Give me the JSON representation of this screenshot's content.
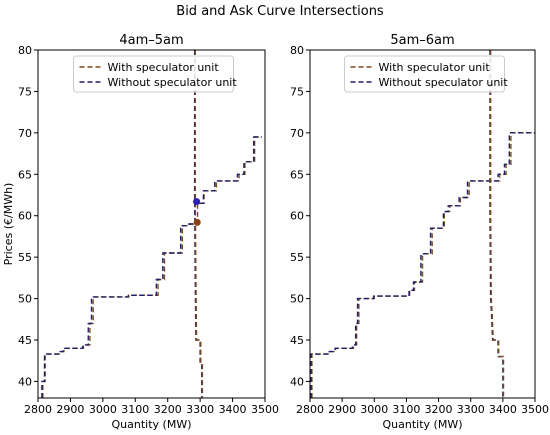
{
  "figure": {
    "suptitle": "Bid and Ask Curve Intersections"
  },
  "legend": {
    "entries": [
      {
        "label": "With speculator unit",
        "color": "#7a4a1e"
      },
      {
        "label": "Without speculator unit",
        "color": "#1f1f6e"
      }
    ]
  },
  "chart_data": [
    {
      "type": "line",
      "title": "4am–5am",
      "xlabel": "Quantity (MW)",
      "ylabel": "Prices (€/MWh)",
      "xlim": [
        2800,
        3500
      ],
      "ylim": [
        38,
        80
      ],
      "xticks": [
        2800,
        2900,
        3000,
        3100,
        3200,
        3300,
        3400,
        3500
      ],
      "yticks": [
        40,
        45,
        50,
        55,
        60,
        65,
        70,
        75,
        80
      ],
      "legend_position": "top-center",
      "grid": false,
      "series": [
        {
          "name": "With speculator unit",
          "color": "#7a4a1e",
          "points": [
            [
              2815,
              38
            ],
            [
              2815,
              40
            ],
            [
              2822,
              40
            ],
            [
              2822,
              43.3
            ],
            [
              2865,
              43.3
            ],
            [
              2865,
              43.6
            ],
            [
              2880,
              43.6
            ],
            [
              2880,
              44
            ],
            [
              2940,
              44
            ],
            [
              2940,
              44.4
            ],
            [
              2960,
              44.4
            ],
            [
              2960,
              47
            ],
            [
              2970,
              47
            ],
            [
              2970,
              50.2
            ],
            [
              3080,
              50.2
            ],
            [
              3080,
              50.4
            ],
            [
              3170,
              50.4
            ],
            [
              3170,
              52.3
            ],
            [
              3190,
              52.3
            ],
            [
              3190,
              55.5
            ],
            [
              3245,
              55.5
            ],
            [
              3245,
              58.8
            ],
            [
              3268,
              58.8
            ],
            [
              3268,
              59
            ],
            [
              3292,
              59
            ],
            [
              3292,
              61.5
            ],
            [
              3312,
              61.5
            ],
            [
              3312,
              63
            ],
            [
              3350,
              63
            ],
            [
              3350,
              64.2
            ],
            [
              3420,
              64.2
            ],
            [
              3420,
              65
            ],
            [
              3438,
              65
            ],
            [
              3438,
              66.5
            ],
            [
              3468,
              66.5
            ],
            [
              3468,
              69.5
            ],
            [
              3490,
              69.5
            ]
          ]
        },
        {
          "name": "Without speculator unit",
          "color": "#1f1f6e",
          "points": [
            [
              2812,
              38
            ],
            [
              2812,
              40
            ],
            [
              2820,
              40
            ],
            [
              2820,
              43.3
            ],
            [
              2862,
              43.3
            ],
            [
              2862,
              43.6
            ],
            [
              2878,
              43.6
            ],
            [
              2878,
              44
            ],
            [
              2938,
              44
            ],
            [
              2938,
              44.4
            ],
            [
              2955,
              44.4
            ],
            [
              2955,
              47
            ],
            [
              2965,
              47
            ],
            [
              2965,
              50.2
            ],
            [
              3078,
              50.2
            ],
            [
              3078,
              50.4
            ],
            [
              3165,
              50.4
            ],
            [
              3165,
              52.3
            ],
            [
              3185,
              52.3
            ],
            [
              3185,
              55.5
            ],
            [
              3240,
              55.5
            ],
            [
              3240,
              58.8
            ],
            [
              3265,
              58.8
            ],
            [
              3265,
              59
            ],
            [
              3285,
              59
            ],
            [
              3285,
              61.5
            ],
            [
              3310,
              61.5
            ],
            [
              3310,
              63
            ],
            [
              3345,
              63
            ],
            [
              3345,
              64.2
            ],
            [
              3415,
              64.2
            ],
            [
              3415,
              65
            ],
            [
              3435,
              65
            ],
            [
              3435,
              66.5
            ],
            [
              3465,
              66.5
            ],
            [
              3465,
              69.5
            ],
            [
              3490,
              69.5
            ]
          ]
        },
        {
          "name": "",
          "color": "#1f1f6e",
          "points": [
            [
              3283,
              80
            ],
            [
              3283,
              62
            ],
            [
              3285,
              52
            ],
            [
              3287,
              45
            ],
            [
              3300,
              45
            ],
            [
              3300,
              42
            ],
            [
              3305,
              42
            ],
            [
              3305,
              38
            ]
          ]
        },
        {
          "name": "",
          "color": "#7a4a1e",
          "points": [
            [
              3285,
              80
            ],
            [
              3285,
              62
            ],
            [
              3287,
              52
            ],
            [
              3289,
              45
            ],
            [
              3302,
              45
            ],
            [
              3302,
              42
            ],
            [
              3307,
              42
            ],
            [
              3307,
              38
            ]
          ]
        }
      ],
      "markers": [
        {
          "x": 3289,
          "y": 61.7,
          "color": "#2b1fb5"
        },
        {
          "x": 3291,
          "y": 59.2,
          "color": "#8b4513"
        }
      ]
    },
    {
      "type": "line",
      "title": "5am–6am",
      "xlabel": "Quantity (MW)",
      "ylabel": "",
      "xlim": [
        2800,
        3500
      ],
      "ylim": [
        38,
        80
      ],
      "xticks": [
        2800,
        2900,
        3000,
        3100,
        3200,
        3300,
        3400,
        3500
      ],
      "yticks": [
        40,
        45,
        50,
        55,
        60,
        65,
        70,
        75,
        80
      ],
      "legend_position": "top-center",
      "grid": false,
      "series": [
        {
          "name": "With speculator unit",
          "color": "#7a4a1e",
          "points": [
            [
              2806,
              38
            ],
            [
              2806,
              43.3
            ],
            [
              2862,
              43.3
            ],
            [
              2862,
              43.6
            ],
            [
              2880,
              43.6
            ],
            [
              2880,
              44
            ],
            [
              2935,
              44
            ],
            [
              2935,
              44.4
            ],
            [
              2945,
              44.4
            ],
            [
              2945,
              47
            ],
            [
              2952,
              47
            ],
            [
              2952,
              50
            ],
            [
              3000,
              50
            ],
            [
              3000,
              50.3
            ],
            [
              3110,
              50.3
            ],
            [
              3110,
              51
            ],
            [
              3125,
              51
            ],
            [
              3125,
              52
            ],
            [
              3150,
              52
            ],
            [
              3150,
              55.4
            ],
            [
              3180,
              55.4
            ],
            [
              3180,
              58.5
            ],
            [
              3218,
              58.5
            ],
            [
              3218,
              60.5
            ],
            [
              3235,
              60.5
            ],
            [
              3235,
              61.2
            ],
            [
              3268,
              61.2
            ],
            [
              3268,
              62.2
            ],
            [
              3295,
              62.2
            ],
            [
              3295,
              64.2
            ],
            [
              3390,
              64.2
            ],
            [
              3390,
              65
            ],
            [
              3410,
              65
            ],
            [
              3410,
              66.2
            ],
            [
              3425,
              66.2
            ],
            [
              3425,
              70
            ],
            [
              3500,
              70
            ]
          ]
        },
        {
          "name": "Without speculator unit",
          "color": "#1f1f6e",
          "points": [
            [
              2803,
              38
            ],
            [
              2803,
              43.3
            ],
            [
              2860,
              43.3
            ],
            [
              2860,
              43.6
            ],
            [
              2878,
              43.6
            ],
            [
              2878,
              44
            ],
            [
              2932,
              44
            ],
            [
              2932,
              44.4
            ],
            [
              2942,
              44.4
            ],
            [
              2942,
              47
            ],
            [
              2948,
              47
            ],
            [
              2948,
              50
            ],
            [
              2998,
              50
            ],
            [
              2998,
              50.3
            ],
            [
              3108,
              50.3
            ],
            [
              3108,
              51
            ],
            [
              3122,
              51
            ],
            [
              3122,
              52
            ],
            [
              3145,
              52
            ],
            [
              3145,
              55.4
            ],
            [
              3175,
              55.4
            ],
            [
              3175,
              58.5
            ],
            [
              3215,
              58.5
            ],
            [
              3215,
              60.5
            ],
            [
              3230,
              60.5
            ],
            [
              3230,
              61.2
            ],
            [
              3264,
              61.2
            ],
            [
              3264,
              62.2
            ],
            [
              3290,
              62.2
            ],
            [
              3290,
              64.2
            ],
            [
              3385,
              64.2
            ],
            [
              3385,
              65
            ],
            [
              3405,
              65
            ],
            [
              3405,
              66.2
            ],
            [
              3420,
              66.2
            ],
            [
              3420,
              70
            ],
            [
              3500,
              70
            ]
          ]
        },
        {
          "name": "",
          "color": "#1f1f6e",
          "points": [
            [
              3360,
              80
            ],
            [
              3360,
              60
            ],
            [
              3362,
              50
            ],
            [
              3365,
              48
            ],
            [
              3368,
              45
            ],
            [
              3385,
              45
            ],
            [
              3385,
              43
            ],
            [
              3400,
              43
            ],
            [
              3400,
              38
            ]
          ]
        },
        {
          "name": "",
          "color": "#7a4a1e",
          "points": [
            [
              3362,
              80
            ],
            [
              3362,
              60
            ],
            [
              3364,
              50
            ],
            [
              3367,
              48
            ],
            [
              3370,
              45
            ],
            [
              3387,
              45
            ],
            [
              3387,
              43
            ],
            [
              3402,
              43
            ],
            [
              3402,
              38
            ]
          ]
        }
      ],
      "markers": []
    }
  ]
}
